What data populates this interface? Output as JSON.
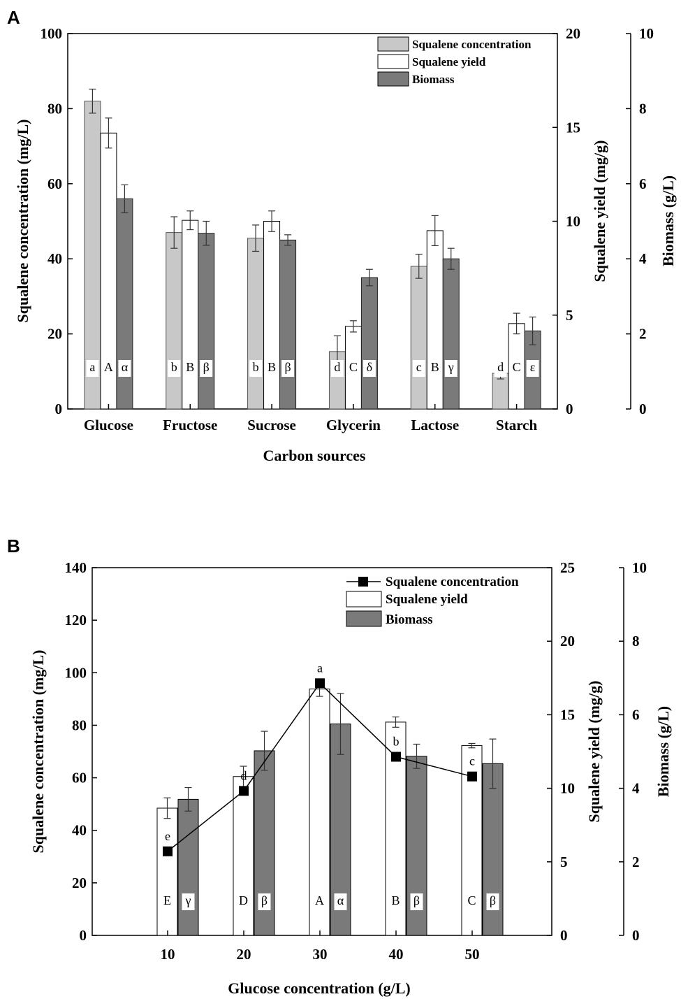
{
  "chart_data": [
    {
      "panel": "A",
      "type": "bar",
      "xlabel": "Carbon sources",
      "ylabel_left": "Squalene concentration (mg/L)",
      "ylabel_right1": "Squalene yield (mg/g)",
      "ylabel_right2": "Biomass (g/L)",
      "ylim_left": [
        0,
        100
      ],
      "ylim_right1": [
        0,
        20
      ],
      "ylim_right2": [
        0,
        10
      ],
      "yticks_left": [
        0,
        20,
        40,
        60,
        80,
        100
      ],
      "yticks_right1": [
        0,
        5,
        10,
        15,
        20
      ],
      "yticks_right2": [
        0,
        2,
        4,
        6,
        8,
        10
      ],
      "categories": [
        "Glucose",
        "Fructose",
        "Sucrose",
        "Glycerin",
        "Lactose",
        "Starch"
      ],
      "legend": [
        "Squalene concentration",
        "Squalene yield",
        "Biomass"
      ],
      "series": [
        {
          "name": "Squalene concentration",
          "axis": "left",
          "color": "#c8c8c8",
          "values": [
            82,
            47,
            45.5,
            15.3,
            38,
            9.5
          ],
          "errors": [
            3.2,
            4.2,
            3.5,
            4.2,
            3.2,
            1.5
          ],
          "letters": [
            "a",
            "b",
            "b",
            "d",
            "c",
            "d"
          ]
        },
        {
          "name": "Squalene yield",
          "axis": "right1",
          "color": "#ffffff",
          "values": [
            14.7,
            10.05,
            10.0,
            4.4,
            9.5,
            4.55
          ],
          "errors": [
            0.8,
            0.5,
            0.55,
            0.3,
            0.8,
            0.55
          ],
          "letters": [
            "A",
            "B",
            "B",
            "C",
            "B",
            "C"
          ]
        },
        {
          "name": "Biomass",
          "axis": "right2",
          "color": "#7a7a7a",
          "values": [
            5.6,
            4.68,
            4.5,
            3.5,
            4.0,
            2.08
          ],
          "errors": [
            0.37,
            0.32,
            0.14,
            0.22,
            0.28,
            0.37
          ],
          "letters": [
            "α",
            "β",
            "β",
            "δ",
            "γ",
            "ε"
          ]
        }
      ]
    },
    {
      "panel": "B",
      "type": "bar+line",
      "xlabel": "Glucose concentration (g/L)",
      "ylabel_left": "Squalene concentration (mg/L)",
      "ylabel_right1": "Squalene yield (mg/g)",
      "ylabel_right2": "Biomass (g/L)",
      "ylim_left": [
        0,
        140
      ],
      "ylim_right1": [
        0,
        25
      ],
      "ylim_right2": [
        0,
        10
      ],
      "yticks_left": [
        0,
        20,
        40,
        60,
        80,
        100,
        120,
        140
      ],
      "yticks_right1": [
        0,
        5,
        10,
        15,
        20,
        25
      ],
      "yticks_right2": [
        0,
        2,
        4,
        6,
        8,
        10
      ],
      "categories": [
        "10",
        "20",
        "30",
        "40",
        "50"
      ],
      "legend": [
        "Squalene concentration",
        "Squalene yield",
        "Biomass"
      ],
      "series": [
        {
          "name": "Squalene concentration",
          "axis": "left",
          "kind": "line",
          "color": "#000000",
          "values": [
            32,
            55,
            96,
            68,
            60.5
          ],
          "letters": [
            "e",
            "d",
            "a",
            "b",
            "c"
          ]
        },
        {
          "name": "Squalene yield",
          "axis": "right1",
          "kind": "bar",
          "color": "#ffffff",
          "values": [
            8.65,
            10.8,
            16.75,
            14.5,
            12.9
          ],
          "errors": [
            0.7,
            0.7,
            0.5,
            0.35,
            0.15
          ],
          "letters": [
            "E",
            "D",
            "A",
            "B",
            "C"
          ]
        },
        {
          "name": "Biomass",
          "axis": "right2",
          "kind": "bar",
          "color": "#7a7a7a",
          "values": [
            3.7,
            5.02,
            5.75,
            4.87,
            4.67
          ],
          "errors": [
            0.32,
            0.53,
            0.83,
            0.33,
            0.67
          ],
          "letters": [
            "γ",
            "β",
            "α",
            "β",
            "β"
          ]
        }
      ]
    }
  ]
}
